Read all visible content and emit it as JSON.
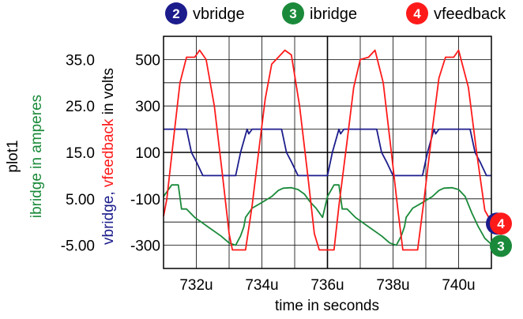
{
  "chart_data": {
    "type": "line",
    "title": "",
    "plot_name": "plot1",
    "xlabel": "time in seconds",
    "x_unit_suffix": "u",
    "xlim": [
      731.0,
      741.0
    ],
    "x_ticks": [
      {
        "value": 732,
        "label": "732u"
      },
      {
        "value": 734,
        "label": "734u"
      },
      {
        "value": 736,
        "label": "736u"
      },
      {
        "value": 738,
        "label": "738u"
      },
      {
        "value": 740,
        "label": "740u"
      }
    ],
    "y_axis_volts": {
      "label_parts": [
        {
          "text": "vbridge",
          "color": "#1c1c8c"
        },
        {
          "text": ", ",
          "color": "#1c1c8c"
        },
        {
          "text": "vfeedback",
          "color": "#ff1a1a"
        },
        {
          "text": " in volts",
          "color": "#000000"
        }
      ],
      "ylim": [
        -400,
        600
      ],
      "tick_labels": [
        "500",
        "300",
        "100",
        "-100",
        "-300"
      ],
      "tick_values": [
        500,
        300,
        100,
        -100,
        -300
      ]
    },
    "y_axis_amperes": {
      "label_parts": [
        {
          "text": "ibridge in amperes",
          "color": "#1a8a3a"
        }
      ],
      "ylim": [
        -10,
        40
      ],
      "tick_labels": [
        "35.0",
        "25.0",
        "15.0",
        "5.00",
        "-5.00"
      ],
      "tick_values": [
        35,
        25,
        15,
        5,
        -5
      ]
    },
    "grid": true,
    "legend_position": "top",
    "series": [
      {
        "id": "2",
        "name": "vbridge",
        "color": "#1c1c8c",
        "axis": "volts",
        "points": [
          [
            731.0,
            200
          ],
          [
            731.7,
            200
          ],
          [
            731.85,
            100
          ],
          [
            732.0,
            60
          ],
          [
            732.2,
            0
          ],
          [
            733.0,
            0
          ],
          [
            733.2,
            0
          ],
          [
            733.35,
            100
          ],
          [
            733.55,
            200
          ],
          [
            733.6,
            180
          ],
          [
            733.7,
            200
          ],
          [
            734.6,
            200
          ],
          [
            734.75,
            100
          ],
          [
            734.9,
            60
          ],
          [
            735.1,
            0
          ],
          [
            736.0,
            0
          ],
          [
            736.15,
            100
          ],
          [
            736.35,
            200
          ],
          [
            736.4,
            180
          ],
          [
            736.5,
            200
          ],
          [
            737.5,
            200
          ],
          [
            737.65,
            100
          ],
          [
            737.8,
            60
          ],
          [
            738.0,
            0
          ],
          [
            738.9,
            0
          ],
          [
            739.05,
            100
          ],
          [
            739.25,
            200
          ],
          [
            739.3,
            180
          ],
          [
            739.4,
            200
          ],
          [
            740.35,
            200
          ],
          [
            740.5,
            100
          ],
          [
            740.65,
            60
          ],
          [
            740.85,
            0
          ],
          [
            741.0,
            0
          ]
        ]
      },
      {
        "id": "3",
        "name": "ibridge",
        "color": "#1a8a3a",
        "axis": "amperes",
        "points": [
          [
            731.0,
            5.5
          ],
          [
            731.25,
            8.0
          ],
          [
            731.45,
            8.0
          ],
          [
            731.55,
            2.8
          ],
          [
            731.7,
            2.8
          ],
          [
            731.95,
            1.0
          ],
          [
            732.35,
            -1.0
          ],
          [
            732.75,
            -3.0
          ],
          [
            733.0,
            -4.5
          ],
          [
            733.2,
            -5.0
          ],
          [
            733.35,
            -3.0
          ],
          [
            733.45,
            -1.0
          ],
          [
            733.5,
            1.0
          ],
          [
            733.7,
            3.0
          ],
          [
            733.95,
            4.0
          ],
          [
            734.3,
            5.5
          ],
          [
            734.5,
            6.8
          ],
          [
            734.65,
            7.3
          ],
          [
            734.9,
            7.4
          ],
          [
            735.1,
            7.0
          ],
          [
            735.3,
            6.0
          ],
          [
            735.45,
            4.5
          ],
          [
            735.65,
            3.0
          ],
          [
            735.85,
            1.0
          ],
          [
            736.0,
            5.5
          ],
          [
            736.2,
            8.0
          ],
          [
            736.35,
            8.0
          ],
          [
            736.45,
            2.8
          ],
          [
            736.6,
            2.8
          ],
          [
            736.85,
            1.0
          ],
          [
            737.25,
            -1.0
          ],
          [
            737.65,
            -3.0
          ],
          [
            737.9,
            -4.5
          ],
          [
            738.1,
            -5.0
          ],
          [
            738.25,
            -3.0
          ],
          [
            738.35,
            -1.0
          ],
          [
            738.4,
            1.0
          ],
          [
            738.6,
            3.0
          ],
          [
            738.85,
            4.0
          ],
          [
            739.2,
            5.5
          ],
          [
            739.4,
            6.8
          ],
          [
            739.55,
            7.3
          ],
          [
            739.8,
            7.4
          ],
          [
            740.0,
            7.0
          ],
          [
            740.2,
            5.5
          ],
          [
            740.4,
            2.0
          ],
          [
            740.6,
            -1.0
          ],
          [
            740.8,
            -3.5
          ],
          [
            741.0,
            -4.8
          ]
        ]
      },
      {
        "id": "4",
        "name": "vfeedback",
        "color": "#ff1a1a",
        "axis": "volts",
        "points": [
          [
            731.0,
            -175
          ],
          [
            731.1,
            -100
          ],
          [
            731.3,
            150
          ],
          [
            731.5,
            400
          ],
          [
            731.7,
            510
          ],
          [
            731.95,
            510
          ],
          [
            732.1,
            540
          ],
          [
            732.3,
            500
          ],
          [
            732.55,
            300
          ],
          [
            732.8,
            0
          ],
          [
            733.0,
            -250
          ],
          [
            733.1,
            -320
          ],
          [
            733.5,
            -320
          ],
          [
            733.7,
            -130
          ],
          [
            733.9,
            100
          ],
          [
            734.1,
            330
          ],
          [
            734.3,
            480
          ],
          [
            734.5,
            510
          ],
          [
            734.7,
            540
          ],
          [
            734.9,
            520
          ],
          [
            735.15,
            300
          ],
          [
            735.4,
            0
          ],
          [
            735.6,
            -250
          ],
          [
            735.75,
            -320
          ],
          [
            736.2,
            -320
          ],
          [
            736.35,
            -130
          ],
          [
            736.6,
            150
          ],
          [
            736.8,
            380
          ],
          [
            737.0,
            500
          ],
          [
            737.25,
            510
          ],
          [
            737.45,
            540
          ],
          [
            737.7,
            400
          ],
          [
            737.95,
            100
          ],
          [
            738.15,
            -150
          ],
          [
            738.3,
            -320
          ],
          [
            738.75,
            -320
          ],
          [
            738.95,
            -100
          ],
          [
            739.2,
            200
          ],
          [
            739.4,
            420
          ],
          [
            739.6,
            510
          ],
          [
            739.85,
            510
          ],
          [
            740.0,
            540
          ],
          [
            740.3,
            380
          ],
          [
            740.55,
            100
          ],
          [
            740.8,
            -150
          ],
          [
            741.0,
            -200
          ]
        ]
      }
    ],
    "end_markers": [
      "3",
      "4"
    ]
  }
}
